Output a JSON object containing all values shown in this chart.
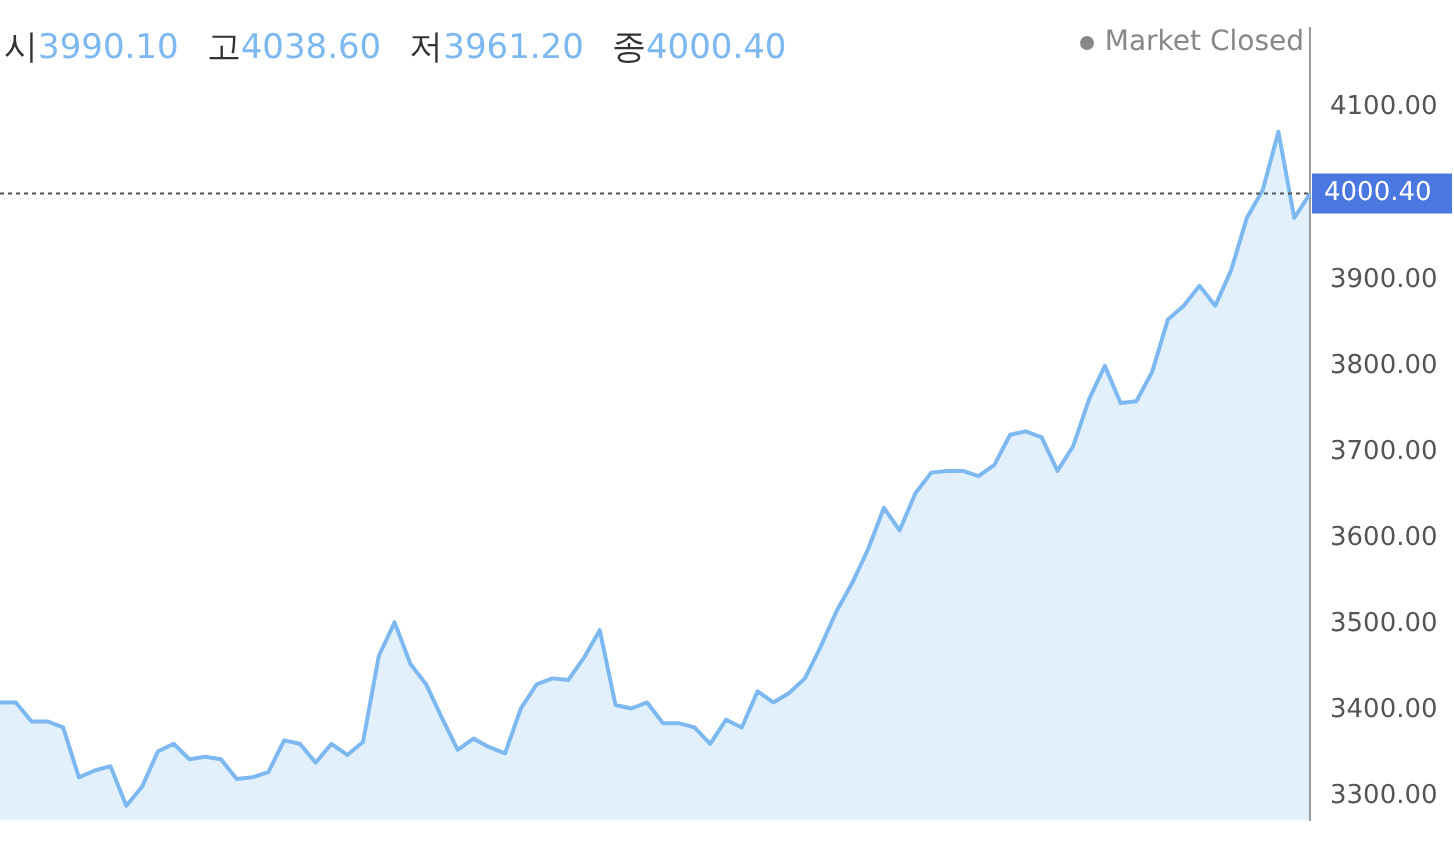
{
  "chart_data": {
    "type": "area",
    "annotations": [
      "시3990.10",
      "고4038.60",
      "저3961.20",
      "종4000.40",
      "Market Closed"
    ],
    "categories": [
      null,
      null,
      null,
      null,
      null,
      null,
      null,
      null,
      null,
      null,
      null,
      null,
      null,
      null,
      null,
      null,
      null,
      null,
      null,
      null,
      null,
      null,
      null,
      null,
      null,
      null,
      null,
      null,
      null,
      null,
      null,
      null,
      null,
      null,
      null,
      null,
      null,
      null,
      null,
      null,
      null,
      null,
      null,
      null,
      null,
      null,
      null,
      null,
      null,
      null,
      null,
      null,
      null,
      null,
      null,
      null,
      null,
      null,
      null,
      null,
      null,
      null,
      null,
      null,
      null,
      null,
      null,
      null,
      null,
      null,
      null,
      null,
      null,
      null,
      null,
      null,
      null,
      null,
      null,
      null,
      null,
      null,
      null,
      null
    ],
    "series": [
      {
        "color": "#7db9f0",
        "values": [
          3409,
          3409,
          3387,
          3387,
          3380,
          3322,
          3330,
          3335,
          3289,
          3311,
          3352,
          3361,
          3343,
          3346,
          3343,
          3320,
          3322,
          3328,
          3365,
          3361,
          3339,
          3361,
          3348,
          3363,
          3463,
          3502,
          3454,
          3430,
          3391,
          3354,
          3367,
          3357,
          3350,
          3402,
          3430,
          3437,
          3435,
          3461,
          3493,
          3406,
          3402,
          3409,
          3385,
          3385,
          3380,
          3361,
          3389,
          3380,
          3422,
          3409,
          3420,
          3437,
          3474,
          3515,
          3548,
          3587,
          3635,
          3609,
          3652,
          3676,
          3678,
          3678,
          3672,
          3685,
          3720,
          3724,
          3717,
          3678,
          3707,
          3761,
          3800,
          3757,
          3759,
          3793,
          3854,
          3870,
          3893,
          3870,
          3911,
          3972,
          4004,
          4072,
          3972,
          4000
        ]
      }
    ],
    "ylim": [
      3272,
      4193
    ],
    "yticks": [
      {
        "value": 3300,
        "label": "3300.00"
      },
      {
        "value": 3400,
        "label": "3400.00"
      },
      {
        "value": 3500,
        "label": "3500.00"
      },
      {
        "value": 3600,
        "label": "3600.00"
      },
      {
        "value": 3700,
        "label": "3700.00"
      },
      {
        "value": 3800,
        "label": "3800.00"
      },
      {
        "value": 3900,
        "label": "3900.00"
      },
      {
        "value": 4100,
        "label": "4100.00"
      }
    ],
    "tick_labels": "y",
    "grid": false,
    "legend": false,
    "marker": "none",
    "line_style": "solid",
    "ref_lines": [
      {
        "axis": "y",
        "value": 4000.4,
        "label": "4000.40",
        "color": "#555555",
        "line_style": "dotted"
      }
    ]
  }
}
